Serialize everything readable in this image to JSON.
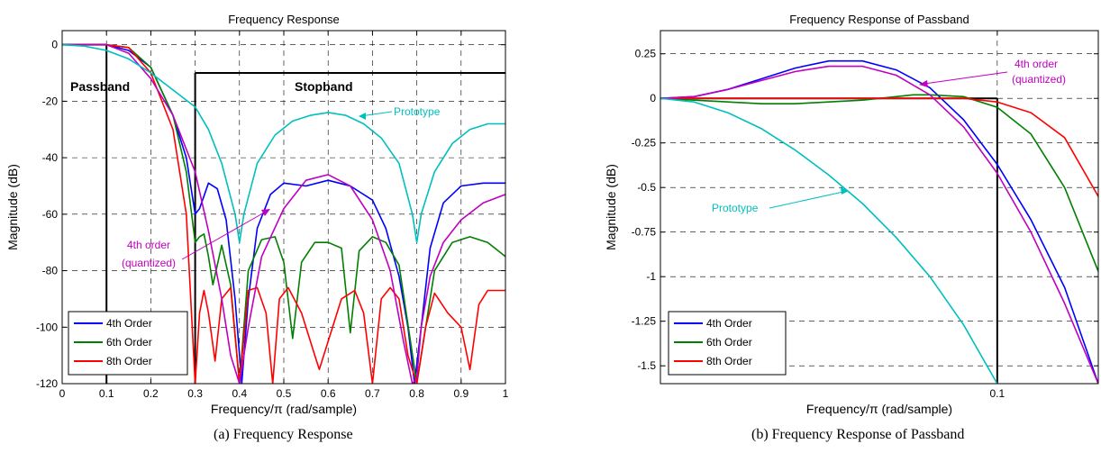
{
  "captions": {
    "a": "(a) Frequency Response",
    "b": "(b) Frequency Response of Passband"
  },
  "colors": {
    "order4": "#0000ff",
    "order6": "#007f00",
    "order8": "#ff0000",
    "quantized": "#bf00bf",
    "prototype": "#00bfbf",
    "frame": "#000000"
  },
  "chart_data": [
    {
      "type": "line",
      "title": "Frequency Response",
      "xlabel": "Frequency/π (rad/sample)",
      "ylabel": "Magnitude (dB)",
      "xlim": [
        0,
        1
      ],
      "ylim": [
        -120,
        5
      ],
      "xticks": [
        0,
        0.1,
        0.2,
        0.3,
        0.4,
        0.5,
        0.6,
        0.7,
        0.8,
        0.9,
        1
      ],
      "xtick_labels": [
        "0",
        "0.1",
        "0.2",
        "0.3",
        "0.4",
        "0.5",
        "0.6",
        "0.7",
        "0.8",
        "0.9",
        "1"
      ],
      "yticks": [
        0,
        -20,
        -40,
        -60,
        -80,
        -100,
        -120
      ],
      "ytick_labels": [
        "0",
        "-20",
        "-40",
        "-60",
        "-80",
        "-100",
        "-120"
      ],
      "grid": true,
      "legend": "bottom-left",
      "legend_entries": [
        "4th Order",
        "6th Order",
        "8th Order"
      ],
      "annotations": {
        "passband": "Passband",
        "stopband": "Stopband",
        "prototype": "Prototype",
        "quantized_line1": "4th order",
        "quantized_line2": "(quantized)"
      },
      "mask": {
        "passband_edge": 0.1,
        "stopband_edge": 0.3,
        "stopband_level": -10,
        "passband_level": 0
      },
      "series": [
        {
          "name": "4th Order",
          "color_key": "order4",
          "x": [
            0,
            0.1,
            0.15,
            0.2,
            0.25,
            0.28,
            0.3,
            0.31,
            0.33,
            0.35,
            0.37,
            0.39,
            0.405,
            0.42,
            0.44,
            0.47,
            0.5,
            0.55,
            0.6,
            0.65,
            0.7,
            0.73,
            0.76,
            0.78,
            0.795,
            0.81,
            0.83,
            0.86,
            0.9,
            0.95,
            1.0
          ],
          "y": [
            0,
            0,
            -2,
            -8,
            -25,
            -40,
            -60,
            -58,
            -49,
            -51,
            -62,
            -90,
            -120,
            -90,
            -65,
            -53,
            -49,
            -50,
            -48,
            -50,
            -55,
            -65,
            -82,
            -100,
            -120,
            -100,
            -72,
            -56,
            -50,
            -49,
            -49
          ]
        },
        {
          "name": "6th Order",
          "color_key": "order6",
          "x": [
            0,
            0.1,
            0.15,
            0.2,
            0.25,
            0.28,
            0.3,
            0.31,
            0.32,
            0.33,
            0.34,
            0.36,
            0.38,
            0.4,
            0.42,
            0.45,
            0.48,
            0.5,
            0.52,
            0.54,
            0.57,
            0.6,
            0.63,
            0.65,
            0.67,
            0.7,
            0.73,
            0.76,
            0.8,
            0.84,
            0.88,
            0.92,
            0.96,
            1.0
          ],
          "y": [
            0,
            0,
            -1,
            -8,
            -25,
            -45,
            -70,
            -68,
            -67,
            -75,
            -85,
            -71,
            -85,
            -120,
            -80,
            -69,
            -68,
            -77,
            -104,
            -77,
            -70,
            -70,
            -72,
            -102,
            -73,
            -68,
            -70,
            -78,
            -120,
            -80,
            -70,
            -68,
            -70,
            -75
          ]
        },
        {
          "name": "8th Order",
          "color_key": "order8",
          "x": [
            0,
            0.1,
            0.15,
            0.2,
            0.25,
            0.28,
            0.3,
            0.31,
            0.32,
            0.33,
            0.345,
            0.36,
            0.38,
            0.4,
            0.42,
            0.44,
            0.46,
            0.475,
            0.49,
            0.51,
            0.54,
            0.57,
            0.58,
            0.6,
            0.63,
            0.66,
            0.68,
            0.7,
            0.72,
            0.74,
            0.76,
            0.78,
            0.8,
            0.82,
            0.84,
            0.87,
            0.9,
            0.92,
            0.94,
            0.96,
            1.0
          ],
          "y": [
            0,
            0,
            -1,
            -10,
            -30,
            -60,
            -120,
            -95,
            -87,
            -95,
            -112,
            -90,
            -86,
            -120,
            -87,
            -86,
            -95,
            -120,
            -90,
            -86,
            -95,
            -110,
            -115,
            -105,
            -90,
            -87,
            -95,
            -120,
            -90,
            -86,
            -90,
            -110,
            -120,
            -100,
            -88,
            -95,
            -100,
            -115,
            -92,
            -87,
            -87
          ]
        },
        {
          "name": "4th order (quantized)",
          "color_key": "quantized",
          "x": [
            0,
            0.1,
            0.15,
            0.2,
            0.25,
            0.3,
            0.33,
            0.36,
            0.38,
            0.4,
            0.42,
            0.45,
            0.5,
            0.55,
            0.6,
            0.65,
            0.7,
            0.74,
            0.77,
            0.79,
            0.8,
            0.81,
            0.83,
            0.86,
            0.9,
            0.95,
            1.0
          ],
          "y": [
            0,
            0,
            -3,
            -12,
            -25,
            -45,
            -66,
            -90,
            -110,
            -120,
            -100,
            -75,
            -58,
            -48,
            -46,
            -50,
            -62,
            -80,
            -105,
            -120,
            -118,
            -100,
            -82,
            -70,
            -62,
            -56,
            -53
          ]
        },
        {
          "name": "Prototype",
          "color_key": "prototype",
          "x": [
            0,
            0.05,
            0.1,
            0.15,
            0.2,
            0.25,
            0.3,
            0.33,
            0.36,
            0.39,
            0.4,
            0.41,
            0.44,
            0.48,
            0.52,
            0.56,
            0.6,
            0.64,
            0.68,
            0.72,
            0.76,
            0.79,
            0.8,
            0.81,
            0.84,
            0.88,
            0.92,
            0.96,
            1.0
          ],
          "y": [
            0,
            -0.5,
            -2,
            -5,
            -10,
            -16,
            -22,
            -30,
            -42,
            -60,
            -70,
            -60,
            -42,
            -32,
            -27,
            -25,
            -24,
            -25,
            -28,
            -33,
            -42,
            -60,
            -70,
            -60,
            -45,
            -35,
            -30,
            -28,
            -28
          ]
        }
      ]
    },
    {
      "type": "line",
      "title": "Frequency Response of Passband",
      "xlabel": "Frequency/π (rad/sample)",
      "ylabel": "Magnitude (dB)",
      "xlim": [
        0,
        0.13
      ],
      "ylim": [
        -1.6,
        0.38
      ],
      "xticks": [
        0.1
      ],
      "xtick_labels": [
        "0.1"
      ],
      "yticks": [
        0.25,
        0,
        -0.25,
        -0.5,
        -0.75,
        -1,
        -1.25,
        -1.5
      ],
      "ytick_labels": [
        "0.25",
        "0",
        "-0.25",
        "-0.5",
        "-0.75",
        "-1",
        "-1.25",
        "-1.5"
      ],
      "grid": true,
      "legend": "bottom-left",
      "legend_entries": [
        "4th Order",
        "6th Order",
        "8th Order"
      ],
      "annotations": {
        "prototype": "Prototype",
        "quantized_line1": "4th order",
        "quantized_line2": "(quantized)"
      },
      "mask": {
        "passband_edge": 0.1,
        "passband_level": 0
      },
      "series": [
        {
          "name": "4th Order",
          "color_key": "order4",
          "x": [
            0,
            0.01,
            0.02,
            0.03,
            0.04,
            0.05,
            0.06,
            0.07,
            0.08,
            0.09,
            0.1,
            0.11,
            0.12,
            0.13
          ],
          "y": [
            0,
            0.01,
            0.05,
            0.11,
            0.17,
            0.21,
            0.21,
            0.16,
            0.06,
            -0.12,
            -0.37,
            -0.68,
            -1.06,
            -1.6
          ]
        },
        {
          "name": "6th Order",
          "color_key": "order6",
          "x": [
            0,
            0.01,
            0.02,
            0.03,
            0.04,
            0.05,
            0.06,
            0.07,
            0.075,
            0.08,
            0.09,
            0.1,
            0.11,
            0.12,
            0.13
          ],
          "y": [
            0,
            -0.01,
            -0.02,
            -0.03,
            -0.03,
            -0.02,
            -0.01,
            0.01,
            0.02,
            0.02,
            0.01,
            -0.05,
            -0.2,
            -0.5,
            -0.97
          ]
        },
        {
          "name": "8th Order",
          "color_key": "order8",
          "x": [
            0,
            0.02,
            0.04,
            0.06,
            0.08,
            0.09,
            0.1,
            0.11,
            0.12,
            0.13
          ],
          "y": [
            0,
            0,
            0,
            0,
            0,
            0,
            -0.02,
            -0.08,
            -0.22,
            -0.55
          ]
        },
        {
          "name": "4th order (quantized)",
          "color_key": "quantized",
          "x": [
            0,
            0.01,
            0.02,
            0.03,
            0.04,
            0.05,
            0.06,
            0.07,
            0.08,
            0.09,
            0.1,
            0.11,
            0.12,
            0.13
          ],
          "y": [
            0,
            0.01,
            0.05,
            0.1,
            0.15,
            0.18,
            0.18,
            0.13,
            0.02,
            -0.16,
            -0.42,
            -0.75,
            -1.15,
            -1.6
          ]
        },
        {
          "name": "Prototype",
          "color_key": "prototype",
          "x": [
            0,
            0.01,
            0.02,
            0.03,
            0.04,
            0.05,
            0.06,
            0.07,
            0.08,
            0.09,
            0.1
          ],
          "y": [
            0,
            -0.02,
            -0.08,
            -0.17,
            -0.29,
            -0.43,
            -0.59,
            -0.78,
            -1.0,
            -1.27,
            -1.6
          ]
        }
      ]
    }
  ]
}
